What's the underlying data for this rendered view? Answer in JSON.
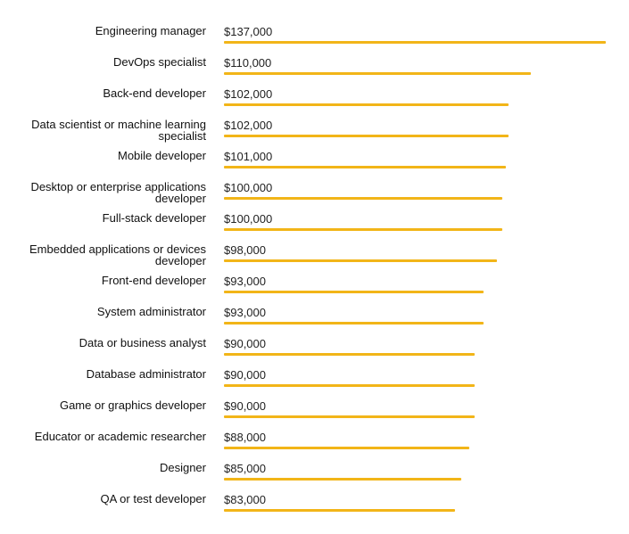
{
  "chart_data": {
    "type": "bar",
    "orientation": "horizontal",
    "categories": [
      "Engineering manager",
      "DevOps specialist",
      "Back-end developer",
      "Data scientist or machine learning specialist",
      "Mobile developer",
      "Desktop or enterprise applications developer",
      "Full-stack developer",
      "Embedded applications or devices developer",
      "Front-end developer",
      "System administrator",
      "Data or business analyst",
      "Database administrator",
      "Game or graphics developer",
      "Educator or academic researcher",
      "Designer",
      "QA or test developer"
    ],
    "values": [
      137000,
      110000,
      102000,
      102000,
      101000,
      100000,
      100000,
      98000,
      93000,
      93000,
      90000,
      90000,
      90000,
      88000,
      85000,
      83000
    ],
    "value_labels": [
      "$137,000",
      "$110,000",
      "$102,000",
      "$102,000",
      "$101,000",
      "$100,000",
      "$100,000",
      "$98,000",
      "$93,000",
      "$93,000",
      "$90,000",
      "$90,000",
      "$90,000",
      "$88,000",
      "$85,000",
      "$83,000"
    ],
    "title": "",
    "xlabel": "",
    "ylabel": "",
    "grid": false,
    "legend": "none",
    "bar_color": "#F2B518"
  }
}
